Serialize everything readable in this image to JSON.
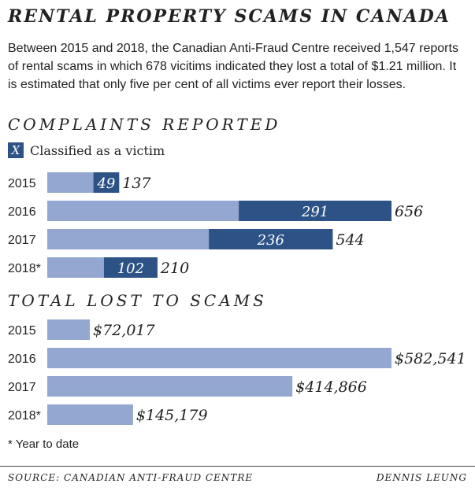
{
  "title": "RENTAL PROPERTY SCAMS IN CANADA",
  "intro": "Between 2015 and 2018, the Canadian Anti-Fraud Centre received 1,547 reports of rental scams in which 678 vicitims indicated they lost a total of $1.21 million. It is estimated that only five per cent of all victims ever report their losses.",
  "legend": {
    "symbol": "X",
    "label": "Classified as a victim"
  },
  "footnote": "* Year to date",
  "source": "SOURCE: CANADIAN ANTI-FRAUD CENTRE",
  "credit": "DENNIS LEUNG",
  "colors": {
    "light": "#94a7d1",
    "dark": "#2c5286"
  },
  "chart_data": [
    {
      "type": "bar",
      "title": "COMPLAINTS REPORTED",
      "categories": [
        "2015",
        "2016",
        "2017",
        "2018*"
      ],
      "series": [
        {
          "name": "Complaints",
          "values": [
            137,
            656,
            544,
            210
          ]
        },
        {
          "name": "Classified as a victim",
          "values": [
            49,
            291,
            236,
            102
          ]
        }
      ],
      "labels": [
        "137",
        "656",
        "544",
        "210"
      ],
      "victim_labels": [
        "49",
        "291",
        "236",
        "102"
      ]
    },
    {
      "type": "bar",
      "title": "TOTAL LOST TO SCAMS",
      "categories": [
        "2015",
        "2016",
        "2017",
        "2018*"
      ],
      "values": [
        72017,
        582541,
        414866,
        145179
      ],
      "labels": [
        "$72,017",
        "$582,541",
        "$414,866",
        "$145,179"
      ]
    }
  ]
}
